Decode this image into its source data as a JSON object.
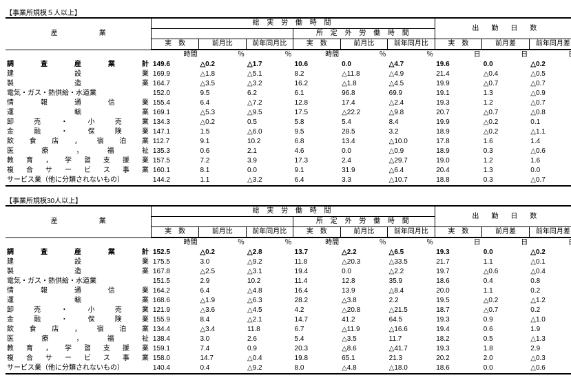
{
  "sections": [
    {
      "title": "【事業所規模５人以上】",
      "header_main": [
        "総 実 労 働 時 間",
        "出　勤　日　数"
      ],
      "header_sub_mid": "所 定 外 労 働 時 間",
      "header_ind": "産　　　　　　業",
      "cols": [
        "実　数",
        "前月比",
        "前年同月比",
        "実　数",
        "前月比",
        "前年同月比",
        "実　数",
        "前月差",
        "前年同月差"
      ],
      "units": [
        "時間",
        "％",
        "％",
        "時間",
        "％",
        "％",
        "日",
        "日",
        "日"
      ],
      "total_label": "調　 査　 産　 業　 計",
      "total": [
        "149.6",
        "△0.2",
        "△1.7",
        "10.6",
        "0.0",
        "△4.7",
        "19.6",
        "0.0",
        "△0.2"
      ],
      "industries": [
        "建　　　　設　　　　業",
        "製　　　　造　　　　業",
        "電気・ガス・熱供給・水道業",
        "情　 報　 通　 信　 業",
        "運　　　　輸　　　　業",
        "卸　売　・　小　売　業",
        "金　融　・　保　険　業",
        "飲 食 店 ， 宿 泊 業",
        "医　療　，　福　祉",
        "教 育 ， 学 習 支 援 業",
        "複 合 サ ー ビ ス 事 業",
        "サービス業（他に分類されないもの）"
      ],
      "rows": [
        [
          "169.9",
          "△1.8",
          "△5.1",
          "8.2",
          "△11.8",
          "△4.9",
          "21.4",
          "△0.4",
          "△0.5"
        ],
        [
          "164.7",
          "△3.5",
          "△3.2",
          "16.2",
          "△1.8",
          "△4.5",
          "19.9",
          "△0.7",
          "△0.7"
        ],
        [
          "152.0",
          "9.5",
          "6.2",
          "6.1",
          "96.8",
          "69.9",
          "19.1",
          "1.3",
          "△0.9"
        ],
        [
          "155.4",
          "6.4",
          "△7.2",
          "12.8",
          "17.4",
          "△2.4",
          "19.3",
          "1.2",
          "△0.7"
        ],
        [
          "169.1",
          "△5.3",
          "△9.5",
          "17.5",
          "△22.2",
          "△9.8",
          "20.7",
          "△0.7",
          "△0.8"
        ],
        [
          "134.3",
          "△0.2",
          "0.5",
          "5.8",
          "5.4",
          "8.4",
          "19.9",
          "△0.2",
          "0.1"
        ],
        [
          "147.1",
          "1.5",
          "△6.0",
          "9.5",
          "28.5",
          "3.2",
          "18.9",
          "△0.2",
          "△1.1"
        ],
        [
          "112.7",
          "9.1",
          "10.2",
          "6.8",
          "13.4",
          "△10.0",
          "17.8",
          "1.6",
          "1.4"
        ],
        [
          "135.3",
          "0.6",
          "2.1",
          "4.6",
          "0.0",
          "△0.9",
          "18.9",
          "0.3",
          "△0.6"
        ],
        [
          "157.5",
          "7.2",
          "3.9",
          "17.3",
          "2.4",
          "△29.7",
          "19.0",
          "1.2",
          "1.6"
        ],
        [
          "160.1",
          "8.1",
          "0.0",
          "9.1",
          "31.9",
          "△6.4",
          "20.4",
          "1.3",
          "0.0"
        ],
        [
          "144.2",
          "1.1",
          "△3.2",
          "6.4",
          "3.3",
          "△10.7",
          "18.8",
          "0.3",
          "△0.7"
        ]
      ]
    },
    {
      "title": "【事業所規模30人以上】",
      "header_main": [
        "総 実 労 働 時 間",
        "出　勤　日　数"
      ],
      "header_sub_mid": "所 定 外 労 働 時 間",
      "header_ind": "産　　　　　　業",
      "cols": [
        "実　数",
        "前月比",
        "前年同月比",
        "実　数",
        "前月比",
        "前年同月比",
        "実　数",
        "前月差",
        "前年同月差"
      ],
      "units": [
        "時間",
        "％",
        "％",
        "時間",
        "％",
        "％",
        "日",
        "日",
        "日"
      ],
      "total_label": "調　 査　 産　 業　 計",
      "total": [
        "152.5",
        "△0.2",
        "△2.8",
        "13.7",
        "△2.2",
        "△6.5",
        "19.3",
        "0.0",
        "△0.2"
      ],
      "industries": [
        "建　　　　設　　　　業",
        "製　　　　造　　　　業",
        "電気・ガス・熱供給・水道業",
        "情　 報　 通　 信　 業",
        "運　　　　輸　　　　業",
        "卸　売　・　小　売　業",
        "金　融　・　保　険　業",
        "飲 食 店 ， 宿 泊 業",
        "医　療　，　福　祉",
        "教 育 ， 学 習 支 援 業",
        "複 合 サ ー ビ ス 事 業",
        "サービス業（他に分類されないもの）"
      ],
      "rows": [
        [
          "175.5",
          "3.0",
          "△9.2",
          "11.8",
          "△20.3",
          "△33.5",
          "21.7",
          "1.1",
          "△0.1"
        ],
        [
          "167.8",
          "△2.5",
          "△3.1",
          "19.4",
          "0.0",
          "△2.2",
          "19.7",
          "△0.6",
          "△0.4"
        ],
        [
          "151.5",
          "2.9",
          "10.2",
          "11.4",
          "12.8",
          "35.9",
          "18.6",
          "0.4",
          "0.8"
        ],
        [
          "164.2",
          "6.4",
          "△4.8",
          "16.4",
          "13.9",
          "△8.4",
          "20.0",
          "1.1",
          "0.2"
        ],
        [
          "168.6",
          "△1.9",
          "△6.3",
          "28.2",
          "△3.8",
          "2.2",
          "19.5",
          "△0.2",
          "△1.2"
        ],
        [
          "121.9",
          "△3.6",
          "△4.5",
          "4.2",
          "△20.8",
          "△21.5",
          "18.7",
          "△0.7",
          "0.2"
        ],
        [
          "155.9",
          "8.4",
          "△2.1",
          "14.7",
          "41.2",
          "64.5",
          "19.3",
          "0.9",
          "△1.0"
        ],
        [
          "134.4",
          "△3.4",
          "11.8",
          "6.7",
          "△11.9",
          "△16.6",
          "19.4",
          "0.6",
          "1.9"
        ],
        [
          "138.4",
          "3.0",
          "2.6",
          "5.4",
          "△3.5",
          "11.7",
          "18.2",
          "0.5",
          "△1.3"
        ],
        [
          "159.1",
          "7.4",
          "0.9",
          "20.3",
          "△8.6",
          "△41.7",
          "19.3",
          "1.8",
          "2.9"
        ],
        [
          "158.0",
          "14.7",
          "△0.4",
          "19.8",
          "65.1",
          "21.3",
          "20.2",
          "2.0",
          "△0.3"
        ],
        [
          "140.4",
          "0.4",
          "△9.2",
          "8.0",
          "△4.8",
          "△18.0",
          "18.6",
          "0.0",
          "△0.6"
        ]
      ]
    }
  ]
}
